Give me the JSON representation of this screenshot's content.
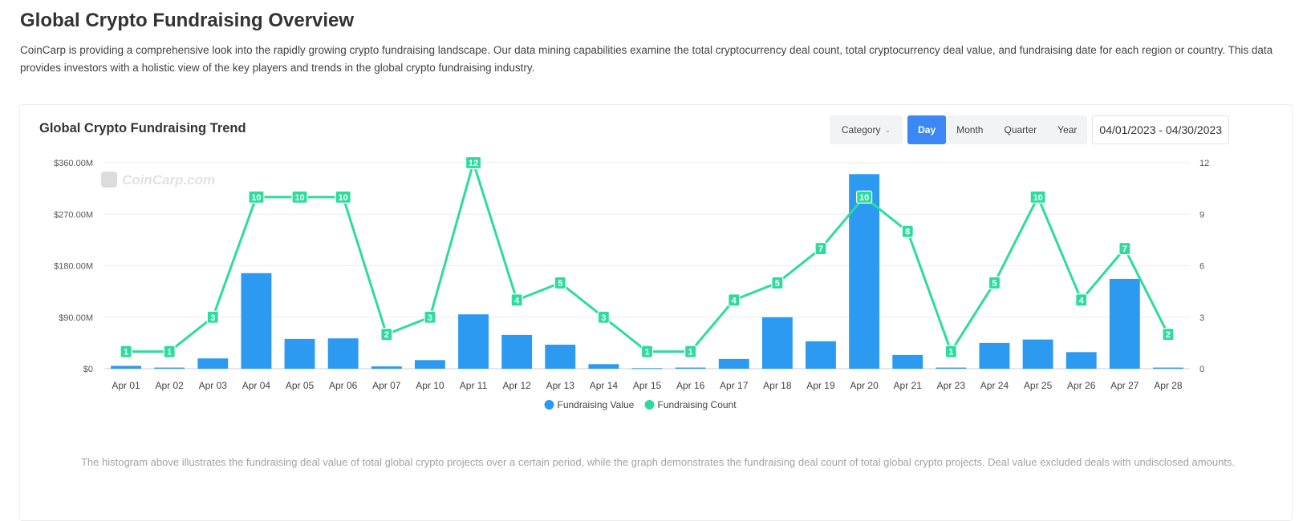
{
  "page": {
    "title": "Global Crypto Fundraising Overview",
    "intro": "CoinCarp is providing a comprehensive look into the rapidly growing crypto fundraising landscape. Our data mining capabilities examine the total cryptocurrency deal count, total cryptocurrency deal value, and fundraising date for each region or country. This data provides investors with a holistic view of the key players and trends in the global crypto fundraising industry."
  },
  "card": {
    "title": "Global Crypto Fundraising Trend",
    "category_label": "Category",
    "periods": [
      "Day",
      "Month",
      "Quarter",
      "Year"
    ],
    "active_period": "Day",
    "date_range": "04/01/2023 - 04/30/2023",
    "watermark": "CoinCarp.com",
    "footnote": "The histogram above illustrates the fundraising deal value of total global crypto projects over a certain period, while the graph demonstrates the fundraising deal count of total global crypto projects. Deal value excluded deals with undisclosed amounts."
  },
  "colors": {
    "bar": "#2c9af0",
    "line": "#2ddc9c",
    "label_bg": "#2ddc9c",
    "active_tab": "#3b87f5"
  },
  "chart_data": {
    "type": "bar",
    "title": "Global Crypto Fundraising Trend",
    "categories": [
      "Apr 01",
      "Apr 02",
      "Apr 03",
      "Apr 04",
      "Apr 05",
      "Apr 06",
      "Apr 07",
      "Apr 10",
      "Apr 11",
      "Apr 12",
      "Apr 13",
      "Apr 14",
      "Apr 15",
      "Apr 16",
      "Apr 17",
      "Apr 18",
      "Apr 19",
      "Apr 20",
      "Apr 21",
      "Apr 23",
      "Apr 24",
      "Apr 25",
      "Apr 26",
      "Apr 27",
      "Apr 28"
    ],
    "series": [
      {
        "name": "Fundraising Value",
        "type": "bar",
        "axis": "left",
        "values": [
          5,
          2,
          18,
          167,
          52,
          53,
          4,
          15,
          95,
          59,
          42,
          8,
          1,
          2,
          17,
          90,
          48,
          340,
          24,
          2,
          45,
          51,
          29,
          157,
          2
        ]
      },
      {
        "name": "Fundraising Count",
        "type": "line",
        "axis": "right",
        "values": [
          1,
          1,
          3,
          10,
          10,
          10,
          2,
          3,
          12,
          4,
          5,
          3,
          1,
          1,
          4,
          5,
          7,
          10,
          8,
          1,
          5,
          10,
          4,
          7,
          2
        ]
      }
    ],
    "y_left": {
      "min": 0,
      "max": 360,
      "ticks": [
        "$0",
        "$90.00M",
        "$180.00M",
        "$270.00M",
        "$360.00M"
      ]
    },
    "y_right": {
      "min": 0,
      "max": 12,
      "ticks": [
        "0",
        "3",
        "6",
        "9",
        "12"
      ]
    },
    "legend": [
      "Fundraising Value",
      "Fundraising Count"
    ],
    "legend_position": "bottom-center",
    "grid": true
  }
}
